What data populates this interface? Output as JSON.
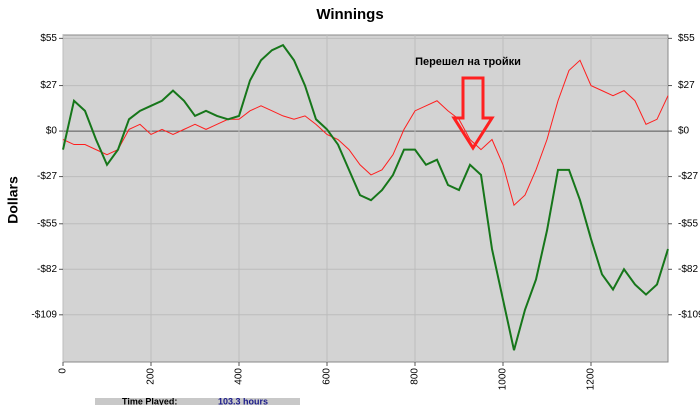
{
  "chart_data": {
    "type": "line",
    "title": "Winnings",
    "y_label": "Dollars",
    "annotation": "Перешел на тройки",
    "x": [
      0,
      25,
      50,
      75,
      100,
      125,
      150,
      175,
      200,
      225,
      250,
      275,
      300,
      325,
      350,
      375,
      400,
      425,
      450,
      475,
      500,
      525,
      550,
      575,
      600,
      625,
      650,
      675,
      700,
      725,
      750,
      775,
      800,
      825,
      850,
      875,
      900,
      925,
      950,
      975,
      1000,
      1025,
      1050,
      1075,
      1100,
      1125,
      1150,
      1175,
      1200,
      1225,
      1250,
      1275,
      1300,
      1325,
      1350,
      1375
    ],
    "series": [
      {
        "color": "#ff1e1e",
        "values": [
          -5,
          -8,
          -8,
          -11,
          -14,
          -11,
          1,
          4,
          -2,
          1,
          -2,
          1,
          4,
          1,
          4,
          7,
          7,
          12,
          15,
          12,
          9,
          7,
          9,
          4,
          -2,
          -5,
          -11,
          -20,
          -26,
          -23,
          -14,
          1,
          12,
          15,
          18,
          12,
          7,
          -5,
          -11,
          -5,
          -20,
          -44,
          -38,
          -23,
          -5,
          18,
          36,
          42,
          27,
          24,
          21,
          24,
          18,
          4,
          7,
          21
        ]
      },
      {
        "color": "#16761a",
        "values": [
          -11,
          18,
          12,
          -5,
          -20,
          -11,
          7,
          12,
          15,
          18,
          24,
          18,
          9,
          12,
          9,
          7,
          9,
          30,
          42,
          48,
          51,
          42,
          27,
          7,
          1,
          -8,
          -23,
          -38,
          -41,
          -35,
          -26,
          -11,
          -11,
          -20,
          -17,
          -32,
          -35,
          -20,
          -26,
          -70,
          -100,
          -130,
          -106,
          -88,
          -59,
          -23,
          -23,
          -41,
          -64,
          -85,
          -94,
          -82,
          -91,
          -97,
          -91,
          -70
        ]
      }
    ],
    "xlim": [
      0,
      1375
    ],
    "xticks": [
      0,
      200,
      400,
      600,
      800,
      1000,
      1200
    ],
    "ylim": [
      -137,
      57
    ],
    "yticks": [
      {
        "value": 55,
        "label": "$55"
      },
      {
        "value": 27,
        "label": "$27"
      },
      {
        "value": 0,
        "label": "$0"
      },
      {
        "value": -27,
        "label": "-$27"
      },
      {
        "value": -55,
        "label": "-$55"
      },
      {
        "value": -82,
        "label": "-$82"
      },
      {
        "value": -109,
        "label": "-$109"
      }
    ],
    "grid": true
  },
  "footer": {
    "label": "Time Played:",
    "value": "103.3 hours"
  }
}
